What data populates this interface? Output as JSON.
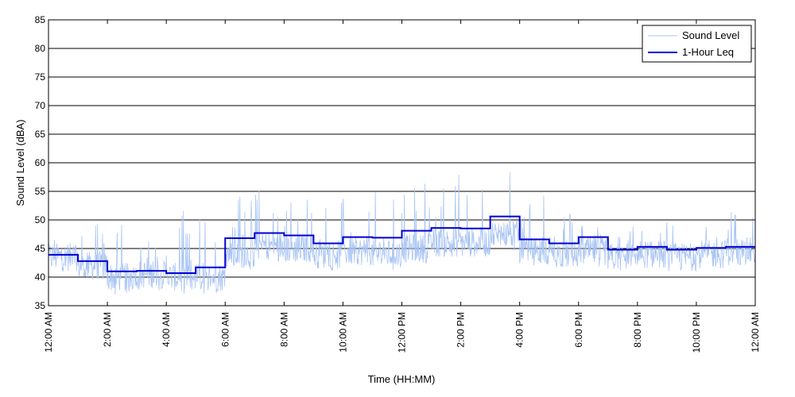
{
  "chart_data": {
    "type": "line",
    "title": "",
    "xlabel": "Time (HH:MM)",
    "ylabel": "Sound Level (dBA)",
    "ylim": [
      35,
      85
    ],
    "y_ticks": [
      35,
      40,
      45,
      50,
      55,
      60,
      65,
      70,
      75,
      80,
      85
    ],
    "xlim_hours": [
      0,
      24
    ],
    "x_ticks": [
      {
        "hour": 0,
        "label": "12:00 AM"
      },
      {
        "hour": 2,
        "label": "2:00 AM"
      },
      {
        "hour": 4,
        "label": "4:00 AM"
      },
      {
        "hour": 6,
        "label": "6:00 AM"
      },
      {
        "hour": 8,
        "label": "8:00 AM"
      },
      {
        "hour": 10,
        "label": "10:00 AM"
      },
      {
        "hour": 12,
        "label": "12:00 PM"
      },
      {
        "hour": 14,
        "label": "2:00 PM"
      },
      {
        "hour": 16,
        "label": "4:00 PM"
      },
      {
        "hour": 18,
        "label": "6:00 PM"
      },
      {
        "hour": 20,
        "label": "8:00 PM"
      },
      {
        "hour": 22,
        "label": "10:00 PM"
      },
      {
        "hour": 24,
        "label": "12:00 AM"
      }
    ],
    "grid": "horizontal",
    "legend_position": "top-right",
    "series": [
      {
        "name": "Sound Level",
        "color": "#a9c4f5",
        "style": "thin line",
        "hourly_mean_approx": [
          43.5,
          42.0,
          40.0,
          40.5,
          40.0,
          40.0,
          44.0,
          45.5,
          45.0,
          44.0,
          44.5,
          44.0,
          45.0,
          46.0,
          46.0,
          47.5,
          44.5,
          44.0,
          44.5,
          43.5,
          44.0,
          43.5,
          44.0,
          44.5
        ],
        "hourly_peak_approx": [
          47.0,
          49.5,
          51.5,
          46.5,
          52.0,
          51.5,
          56.0,
          55.5,
          54.0,
          54.5,
          54.0,
          55.0,
          58.5,
          59.0,
          56.5,
          60.5,
          55.0,
          53.5,
          53.0,
          49.0,
          48.5,
          50.0,
          50.5,
          52.0
        ]
      },
      {
        "name": "1-Hour Leq",
        "color": "#0000d4",
        "style": "thick step",
        "values": [
          43.9,
          42.8,
          41.0,
          41.1,
          40.7,
          41.7,
          46.8,
          47.7,
          47.3,
          45.9,
          47.0,
          46.9,
          48.1,
          48.6,
          48.5,
          50.6,
          46.6,
          45.9,
          47.0,
          44.8,
          45.3,
          44.8,
          45.1,
          45.3
        ]
      }
    ]
  }
}
